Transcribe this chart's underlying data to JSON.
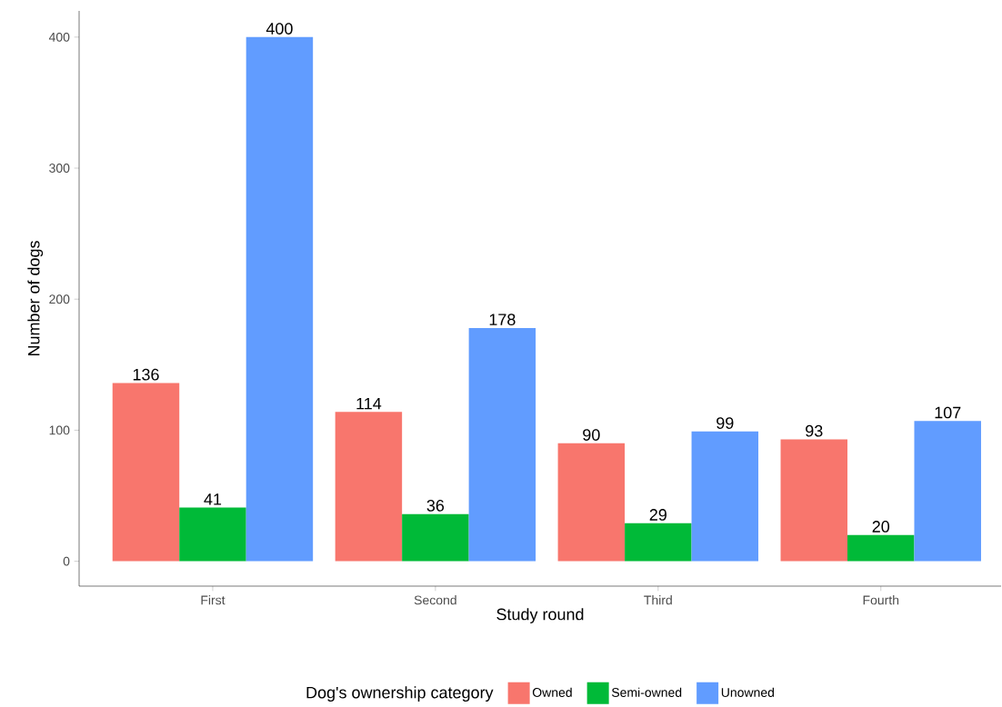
{
  "chart_data": {
    "type": "bar",
    "xlabel": "Study round",
    "ylabel": "Number of dogs",
    "legend_title": "Dog's ownership category",
    "categories": [
      "First",
      "Second",
      "Third",
      "Fourth"
    ],
    "series": [
      {
        "name": "Owned",
        "color": "#f8766d",
        "values": [
          136,
          114,
          90,
          93
        ]
      },
      {
        "name": "Semi-owned",
        "color": "#00ba38",
        "values": [
          41,
          36,
          29,
          20
        ]
      },
      {
        "name": "Unowned",
        "color": "#619cff",
        "values": [
          400,
          178,
          99,
          107
        ]
      }
    ],
    "ylim": [
      -19,
      420
    ],
    "yticks": [
      0,
      100,
      200,
      300,
      400
    ],
    "data_labels": true,
    "grid": false,
    "legend": "bottom"
  }
}
